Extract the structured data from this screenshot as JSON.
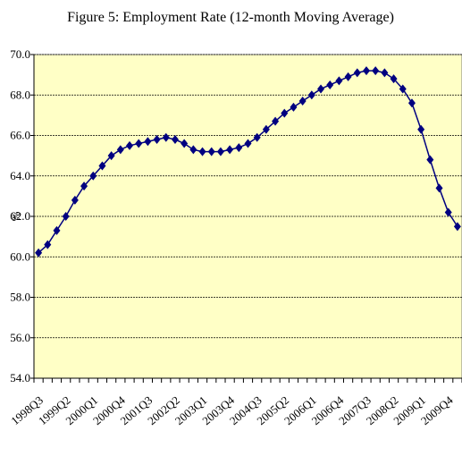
{
  "chart_data": {
    "type": "line",
    "title": "Figure 5: Employment Rate  (12-month Moving Average)",
    "y_label": "%",
    "categories": [
      "1998Q3",
      null,
      null,
      "1999Q2",
      null,
      null,
      "2000Q1",
      null,
      null,
      "2000Q4",
      null,
      null,
      "2001Q3",
      null,
      null,
      "2002Q2",
      null,
      null,
      "2003Q1",
      null,
      null,
      "2003Q4",
      null,
      null,
      "2004Q3",
      null,
      null,
      "2005Q2",
      null,
      null,
      "2006Q1",
      null,
      null,
      "2006Q4",
      null,
      null,
      "2007Q3",
      null,
      null,
      "2008Q2",
      null,
      null,
      "2009Q1",
      null,
      null,
      "2009Q4",
      null
    ],
    "values": [
      60.2,
      60.6,
      61.3,
      62.0,
      62.8,
      63.5,
      64.0,
      64.5,
      65.0,
      65.3,
      65.5,
      65.6,
      65.7,
      65.8,
      65.9,
      65.8,
      65.6,
      65.3,
      65.2,
      65.2,
      65.2,
      65.3,
      65.4,
      65.6,
      65.9,
      66.3,
      66.7,
      67.1,
      67.4,
      67.7,
      68.0,
      68.3,
      68.5,
      68.7,
      68.9,
      69.1,
      69.2,
      69.2,
      69.1,
      68.8,
      68.3,
      67.6,
      66.3,
      64.8,
      63.4,
      62.2,
      61.5
    ],
    "color": "#000080",
    "ylim": [
      54,
      70
    ],
    "yticks": [
      {
        "value": 54,
        "label": "54.0"
      },
      {
        "value": 56,
        "label": "56.0"
      },
      {
        "value": 58,
        "label": "58.0"
      },
      {
        "value": 60,
        "label": "60.0"
      },
      {
        "value": 62,
        "label": "62.0"
      },
      {
        "value": 64,
        "label": "64.0"
      },
      {
        "value": 66,
        "label": "66.0"
      },
      {
        "value": 68,
        "label": "68.0"
      },
      {
        "value": 70,
        "label": "70.0"
      }
    ],
    "grid": true
  }
}
